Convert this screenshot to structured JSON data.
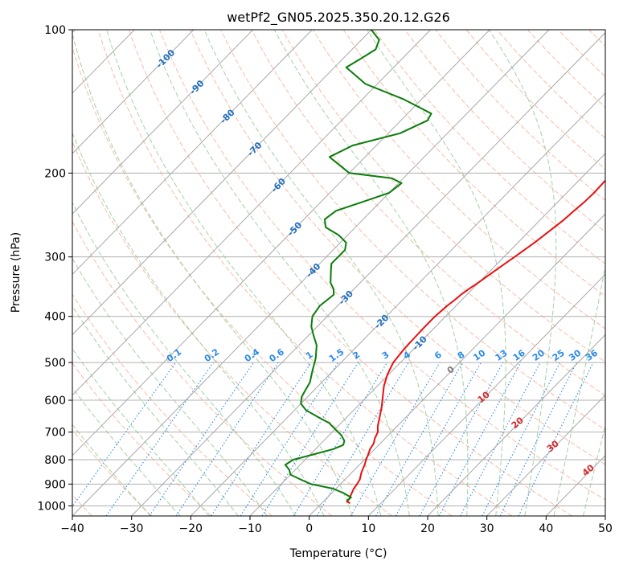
{
  "chart_data": {
    "type": "line",
    "title": "wetPf2_GN05.2025.350.20.12.G26",
    "xlabel": "Temperature (°C)",
    "ylabel": "Pressure (hPa)",
    "xlim": [
      -40,
      50
    ],
    "ylim": [
      1050,
      100
    ],
    "y_scale": "log",
    "grid": true,
    "x_ticks": [
      -40,
      -30,
      -20,
      -10,
      0,
      10,
      20,
      30,
      40,
      50
    ],
    "y_ticks": [
      100,
      200,
      300,
      400,
      500,
      600,
      700,
      800,
      900,
      1000
    ],
    "x_tick_labels": [
      "−40",
      "−30",
      "−20",
      "−10",
      "0",
      "10",
      "20",
      "30",
      "40",
      "50"
    ],
    "y_tick_labels": [
      "100",
      "200",
      "300",
      "400",
      "500",
      "600",
      "700",
      "800",
      "900",
      "1000"
    ],
    "colors": {
      "temperature": "#e81010",
      "dewpoint": "#0a7d0a",
      "isotherm": "#a8a8a8",
      "dry_adiabat": "#f4a58a",
      "moist_adiabat": "#8cc68c",
      "mixing_ratio": "#2a8ae8",
      "skew_label": "#1f6fbf",
      "moist_label": "#d42a2a"
    },
    "series": [
      {
        "key": "temperature",
        "p": [
          987,
          980,
          970,
          950,
          920,
          900,
          880,
          850,
          820,
          800,
          780,
          760,
          740,
          720,
          700,
          680,
          650,
          620,
          600,
          560,
          530,
          500,
          470,
          450,
          420,
          400,
          380,
          370,
          360,
          350,
          340,
          320,
          300,
          280,
          260,
          250,
          240,
          230,
          220,
          200,
          180,
          160,
          150,
          140,
          130,
          120,
          110,
          100
        ],
        "t": [
          4.8,
          4.0,
          4.0,
          3.6,
          3.0,
          2.8,
          2.5,
          1.6,
          0.9,
          0.3,
          -0.2,
          -0.8,
          -1.1,
          -1.8,
          -2.3,
          -3.3,
          -4.5,
          -5.8,
          -6.8,
          -8.9,
          -10.2,
          -11.2,
          -11.6,
          -11.7,
          -11.8,
          -11.8,
          -11.5,
          -11.2,
          -11.0,
          -10.6,
          -10.1,
          -9.2,
          -8.2,
          -7.2,
          -6.4,
          -6.0,
          -5.8,
          -5.5,
          -5.4,
          -5.6,
          -6.2,
          -7.1,
          -7.9,
          -9.0,
          -10.9,
          -13.0,
          -15.0,
          -18.0
        ]
      },
      {
        "key": "dewpoint",
        "p": [
          975,
          960,
          940,
          920,
          900,
          880,
          860,
          840,
          820,
          800,
          780,
          760,
          745,
          730,
          710,
          690,
          670,
          650,
          630,
          610,
          590,
          570,
          550,
          520,
          490,
          460,
          440,
          420,
          400,
          380,
          360,
          350,
          340,
          320,
          310,
          300,
          290,
          280,
          270,
          260,
          250,
          240,
          230,
          220,
          210,
          205,
          200,
          185,
          175,
          165,
          155,
          150,
          140,
          130,
          120,
          115,
          110,
          105,
          100
        ],
        "t": [
          3.8,
          4.0,
          2.0,
          -0.5,
          -5.0,
          -7.5,
          -10.0,
          -11.0,
          -12.5,
          -12.0,
          -9.5,
          -7.0,
          -6.0,
          -6.5,
          -8.0,
          -10.0,
          -12.0,
          -15.0,
          -18.0,
          -20.0,
          -21.0,
          -21.5,
          -22.0,
          -23.5,
          -25.0,
          -27.0,
          -29.0,
          -31.0,
          -32.5,
          -33.0,
          -32.5,
          -33.5,
          -35.0,
          -37.0,
          -38.0,
          -38.0,
          -38.0,
          -39.0,
          -41.5,
          -45.0,
          -46.5,
          -46.0,
          -43.0,
          -40.0,
          -39.5,
          -42.0,
          -50.0,
          -56.0,
          -54.0,
          -48.0,
          -45.5,
          -46.0,
          -53.0,
          -62.0,
          -68.0,
          -67.0,
          -66.0,
          -67.0,
          -70.0
        ]
      }
    ],
    "skew_labels": [
      "-100",
      "-90",
      "-80",
      "-70",
      "-60",
      "-50",
      "-40",
      "-30",
      "-20",
      "-10"
    ],
    "mixing_labels": [
      "0.1",
      "0.2",
      "0.4",
      "0.6",
      "1",
      "1.5",
      "2",
      "3",
      "4",
      "6",
      "8",
      "10",
      "13",
      "16",
      "20",
      "25",
      "30",
      "36"
    ],
    "moist_labels": [
      "0",
      "10",
      "20",
      "30",
      "40"
    ]
  }
}
